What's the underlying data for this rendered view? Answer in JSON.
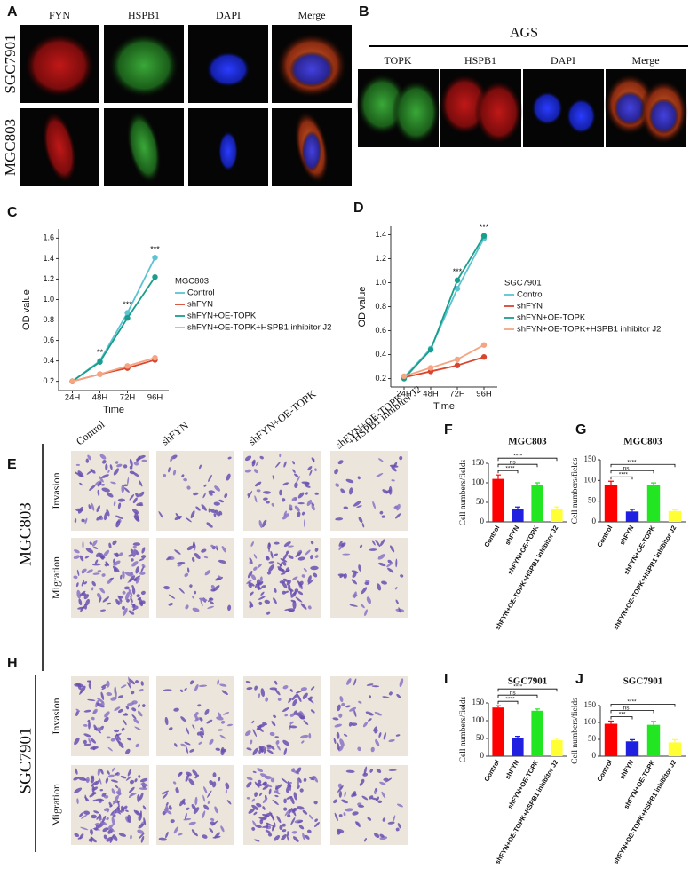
{
  "figure_a": {
    "panel": "A",
    "columns": [
      "FYN",
      "HSPB1",
      "DAPI",
      "Merge"
    ],
    "rows": [
      "SGC7901",
      "MGC803"
    ]
  },
  "figure_b": {
    "panel": "B",
    "cell_line": "AGS",
    "columns": [
      "TOPK",
      "HSPB1",
      "DAPI",
      "Merge"
    ]
  },
  "transwell": {
    "columns": [
      "Control",
      "shFYN",
      "shFYN+OE-TOPK",
      [
        "shFYN+OE-TOPK",
        "+HSPB1 inhibitor J2"
      ]
    ],
    "groups": [
      {
        "panel": "E",
        "cell_line": "MGC803",
        "rows": [
          "Invasion",
          "Migration"
        ]
      },
      {
        "panel": "H",
        "cell_line": "SGC7901",
        "rows": [
          "Invasion",
          "Migration"
        ]
      }
    ]
  },
  "chart_data": [
    {
      "panel": "C",
      "type": "line",
      "x_label": "Time",
      "y_label": "OD value",
      "legend_title": "MGC803",
      "legend": "right",
      "grid": false,
      "categories": [
        "24H",
        "48H",
        "72H",
        "96H"
      ],
      "ylim": [
        0.11,
        1.69
      ],
      "yticks": [
        0.2,
        0.4,
        0.6,
        0.8,
        {
          "value": 1,
          "label": "1.0"
        },
        1.2,
        1.4,
        1.6
      ],
      "significance": [
        null,
        "**",
        "***",
        "***"
      ],
      "series": [
        {
          "name": "Control",
          "color": "#5cc3d2",
          "values": [
            0.2,
            0.4,
            0.87,
            1.41
          ]
        },
        {
          "name": "shFYN",
          "color": "#d9452f",
          "values": [
            0.2,
            0.27,
            0.33,
            0.41
          ]
        },
        {
          "name": "shFYN+OE-TOPK",
          "color": "#1a9e8c",
          "values": [
            0.2,
            0.39,
            0.82,
            1.22
          ]
        },
        {
          "name": "shFYN+OE-TOPK+HSPB1 inhibitor J2",
          "color": "#f4a582",
          "values": [
            0.2,
            0.27,
            0.35,
            0.43
          ]
        }
      ]
    },
    {
      "panel": "D",
      "type": "line",
      "x_label": "Time",
      "y_label": "OD value",
      "legend_title": "SGC7901",
      "legend": "right",
      "grid": false,
      "categories": [
        "24H",
        "48H",
        "72H",
        "96H"
      ],
      "ylim": [
        0.13,
        1.47
      ],
      "yticks": [
        0.2,
        0.4,
        0.6,
        0.8,
        {
          "value": 1,
          "label": "1.0"
        },
        1.2,
        1.4
      ],
      "significance": [
        null,
        null,
        "***",
        "***"
      ],
      "series": [
        {
          "name": "Control",
          "color": "#5cc3d2",
          "values": [
            0.21,
            0.45,
            0.95,
            1.37
          ]
        },
        {
          "name": "shFYN",
          "color": "#d9452f",
          "values": [
            0.21,
            0.26,
            0.31,
            0.38
          ]
        },
        {
          "name": "shFYN+OE-TOPK",
          "color": "#1a9e8c",
          "values": [
            0.2,
            0.44,
            1.02,
            1.39
          ]
        },
        {
          "name": "shFYN+OE-TOPK+HSPB1 inhibitor J2",
          "color": "#f4a582",
          "values": [
            0.22,
            0.29,
            0.36,
            0.48
          ]
        }
      ]
    },
    {
      "panel": "F",
      "type": "bar",
      "title": "MGC803",
      "y_label": "Cell numbers/fields",
      "categories": [
        "Control",
        "shFYN",
        "shFYN+OE-TOPK",
        "shFYN+OE-TOPK+HSPB1 inhibitor J2"
      ],
      "values": [
        110,
        32,
        95,
        32
      ],
      "errors": [
        10,
        6,
        5,
        6
      ],
      "colors": [
        "#ff0000",
        "#2020e0",
        "#22e622",
        "#ffff33"
      ],
      "ylim": [
        0,
        150
      ],
      "yticks": [
        0,
        50,
        100,
        150
      ],
      "significance": [
        "****",
        "ns",
        "****"
      ]
    },
    {
      "panel": "G",
      "type": "bar",
      "title": "MGC803",
      "y_label": "Cell numbers/fields",
      "categories": [
        "Control",
        "shFYN",
        "shFYN+OE-TOPK",
        "shFYN+OE-TOPK+HSPB1 inhibitor J2"
      ],
      "values": [
        90,
        25,
        88,
        26
      ],
      "errors": [
        8,
        5,
        6,
        3
      ],
      "colors": [
        "#ff0000",
        "#2020e0",
        "#22e622",
        "#ffff33"
      ],
      "ylim": [
        0,
        150
      ],
      "yticks": [
        0,
        50,
        100,
        150
      ],
      "significance": [
        "****",
        "ns",
        "****"
      ]
    },
    {
      "panel": "I",
      "type": "bar",
      "title": "SGC7901",
      "y_label": "Cell numbers/fields",
      "categories": [
        "Control",
        "shFYN",
        "shFYN+OE-TOPK",
        "shFYN+OE-TOPK+HSPB1 inhibitor J2"
      ],
      "values": [
        137,
        50,
        128,
        45
      ],
      "errors": [
        5,
        6,
        5,
        6
      ],
      "colors": [
        "#ff0000",
        "#2020e0",
        "#22e622",
        "#ffff33"
      ],
      "ylim": [
        0,
        150
      ],
      "yticks": [
        0,
        50,
        100,
        150
      ],
      "significance": [
        "****",
        "ns",
        "****"
      ]
    },
    {
      "panel": "J",
      "type": "bar",
      "title": "SGC7901",
      "y_label": "Cell numbers/fields",
      "categories": [
        "Control",
        "shFYN",
        "shFYN+OE-TOPK",
        "shFYN+OE-TOPK+HSPB1 inhibitor J2"
      ],
      "values": [
        96,
        44,
        93,
        41
      ],
      "errors": [
        8,
        5,
        10,
        8
      ],
      "colors": [
        "#ff0000",
        "#2020e0",
        "#22e622",
        "#ffff33"
      ],
      "ylim": [
        0,
        150
      ],
      "yticks": [
        0,
        50,
        100,
        150
      ],
      "significance": [
        "***",
        "ns",
        "****"
      ]
    }
  ]
}
